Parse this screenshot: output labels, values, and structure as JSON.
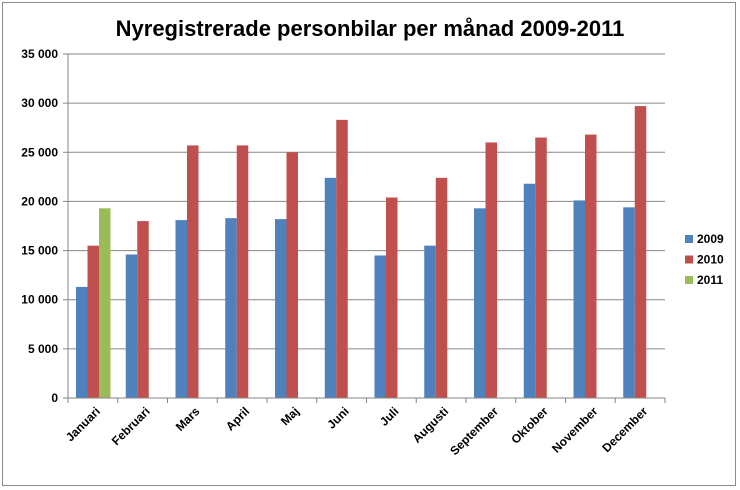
{
  "chart_data": {
    "type": "bar",
    "title": "Nyregistrerade personbilar per månad 2009-2011",
    "xlabel": "",
    "ylabel": "",
    "ylim": [
      0,
      35000
    ],
    "yticks": [
      0,
      5000,
      10000,
      15000,
      20000,
      25000,
      30000,
      35000
    ],
    "ytick_labels": [
      "0",
      "5 000",
      "10 000",
      "15 000",
      "20 000",
      "25 000",
      "30 000",
      "35 000"
    ],
    "grid": true,
    "legend_position": "right",
    "categories": [
      "Januari",
      "Februari",
      "Mars",
      "April",
      "Maj",
      "Juni",
      "Juli",
      "Augusti",
      "September",
      "Oktober",
      "November",
      "December"
    ],
    "series": [
      {
        "name": "2009",
        "color": "#4f81bd",
        "values": [
          11300,
          14600,
          18100,
          18300,
          18200,
          22400,
          14500,
          15500,
          19300,
          21800,
          20100,
          19400
        ]
      },
      {
        "name": "2010",
        "color": "#c0504d",
        "values": [
          15500,
          18000,
          25700,
          25700,
          25000,
          28300,
          20400,
          22400,
          26000,
          26500,
          26800,
          29700
        ]
      },
      {
        "name": "2011",
        "color": "#9bbb59",
        "values": [
          19300,
          null,
          null,
          null,
          null,
          null,
          null,
          null,
          null,
          null,
          null,
          null
        ]
      }
    ]
  }
}
